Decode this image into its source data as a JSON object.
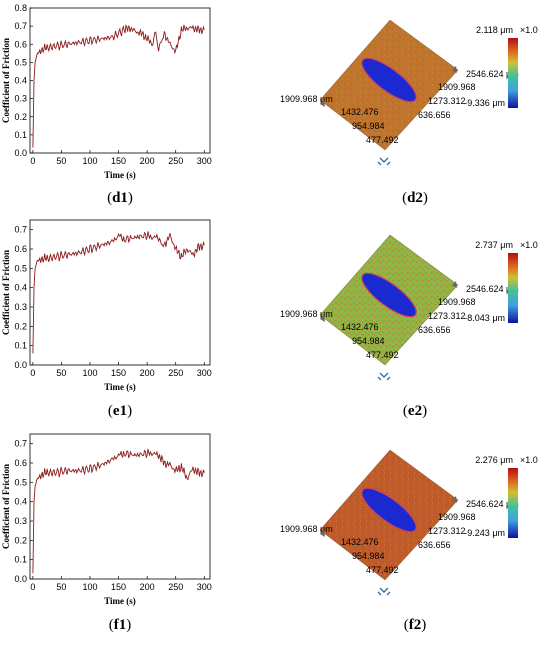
{
  "panels": [
    {
      "id": "d",
      "chart_label": "d1",
      "surface_label": "d2",
      "chart_data": {
        "type": "line",
        "xlabel": "Time (s)",
        "ylabel": "Coefficient of Friction",
        "xlim": [
          -5,
          310
        ],
        "ylim": [
          0.0,
          0.8
        ],
        "xticks": [
          0,
          50,
          100,
          150,
          200,
          250,
          300
        ],
        "yticks": [
          0.0,
          0.1,
          0.2,
          0.3,
          0.4,
          0.5,
          0.6,
          0.7,
          0.8
        ],
        "line_color": "#8b1a1a",
        "series": [
          {
            "x": [
              0,
              2,
              4,
              8,
              15,
              25,
              40,
              60,
              80,
              100,
              120,
              140,
              160,
              170,
              180,
              190,
              200,
              210,
              215,
              220,
              225,
              230,
              240,
              250,
              260,
              270,
              280,
              290,
              300
            ],
            "y": [
              0.03,
              0.4,
              0.5,
              0.55,
              0.57,
              0.58,
              0.59,
              0.6,
              0.61,
              0.62,
              0.63,
              0.64,
              0.68,
              0.69,
              0.67,
              0.66,
              0.63,
              0.6,
              0.67,
              0.58,
              0.62,
              0.66,
              0.6,
              0.56,
              0.68,
              0.69,
              0.69,
              0.68,
              0.68
            ]
          }
        ]
      },
      "surface": {
        "max_label": "2.118 μm",
        "min_label": "-9.336 μm",
        "scale_label": "×1.0",
        "x_ticks": [
          "1909.968 μm",
          "1432.476",
          "954.984",
          "477.492"
        ],
        "y_ticks": [
          "2546.624 μm",
          "1909.968",
          "1273.312",
          "636.656"
        ],
        "base_color": "#c0742e",
        "wear_color": "#1a2ad0"
      }
    },
    {
      "id": "e",
      "chart_label": "e1",
      "surface_label": "e2",
      "chart_data": {
        "type": "line",
        "xlabel": "Time (s)",
        "ylabel": "Coefficient of Friction",
        "xlim": [
          -5,
          310
        ],
        "ylim": [
          0.0,
          0.75
        ],
        "xticks": [
          0,
          50,
          100,
          150,
          200,
          250,
          300
        ],
        "yticks": [
          0.0,
          0.1,
          0.2,
          0.3,
          0.4,
          0.5,
          0.6,
          0.7
        ],
        "line_color": "#8b1a1a",
        "series": [
          {
            "x": [
              0,
              2,
              4,
              8,
              15,
              25,
              40,
              60,
              80,
              100,
              120,
              140,
              150,
              160,
              180,
              200,
              210,
              220,
              225,
              230,
              240,
              250,
              260,
              270,
              280,
              290,
              300
            ],
            "y": [
              0.06,
              0.4,
              0.5,
              0.54,
              0.55,
              0.55,
              0.56,
              0.57,
              0.58,
              0.6,
              0.62,
              0.64,
              0.67,
              0.65,
              0.66,
              0.67,
              0.66,
              0.66,
              0.63,
              0.62,
              0.67,
              0.6,
              0.56,
              0.6,
              0.57,
              0.61,
              0.62
            ]
          }
        ]
      },
      "surface": {
        "max_label": "2.737 μm",
        "min_label": "-8.043 μm",
        "scale_label": "×1.0",
        "x_ticks": [
          "1909.968 μm",
          "1432.476",
          "954.984",
          "477.492"
        ],
        "y_ticks": [
          "2546.624 μm",
          "1909.968",
          "1273.312",
          "636.656"
        ],
        "base_color": "#8fb545",
        "wear_color": "#1a2ad0"
      }
    },
    {
      "id": "f",
      "chart_label": "f1",
      "surface_label": "f2",
      "chart_data": {
        "type": "line",
        "xlabel": "Time (s)",
        "ylabel": "Coefficient of Friction",
        "xlim": [
          -5,
          310
        ],
        "ylim": [
          0.0,
          0.75
        ],
        "xticks": [
          0,
          50,
          100,
          150,
          200,
          250,
          300
        ],
        "yticks": [
          0.0,
          0.1,
          0.2,
          0.3,
          0.4,
          0.5,
          0.6,
          0.7
        ],
        "line_color": "#8b1a1a",
        "series": [
          {
            "x": [
              0,
              2,
              4,
              8,
              15,
              25,
              40,
              60,
              80,
              100,
              120,
              140,
              150,
              160,
              180,
              200,
              210,
              220,
              230,
              240,
              250,
              260,
              270,
              280,
              290,
              300
            ],
            "y": [
              0.03,
              0.4,
              0.48,
              0.52,
              0.54,
              0.55,
              0.55,
              0.56,
              0.56,
              0.57,
              0.59,
              0.62,
              0.64,
              0.65,
              0.64,
              0.65,
              0.65,
              0.64,
              0.6,
              0.59,
              0.56,
              0.58,
              0.52,
              0.57,
              0.55,
              0.55
            ]
          }
        ]
      },
      "surface": {
        "max_label": "2.276 μm",
        "min_label": "-9.243 μm",
        "scale_label": "×1.0",
        "x_ticks": [
          "1909.968 μm",
          "1432.476",
          "954.984",
          "477.492"
        ],
        "y_ticks": [
          "2546.624 μm",
          "1909.968",
          "1273.312",
          "636.656"
        ],
        "base_color": "#c05a2a",
        "wear_color": "#1a2ad0"
      }
    }
  ]
}
